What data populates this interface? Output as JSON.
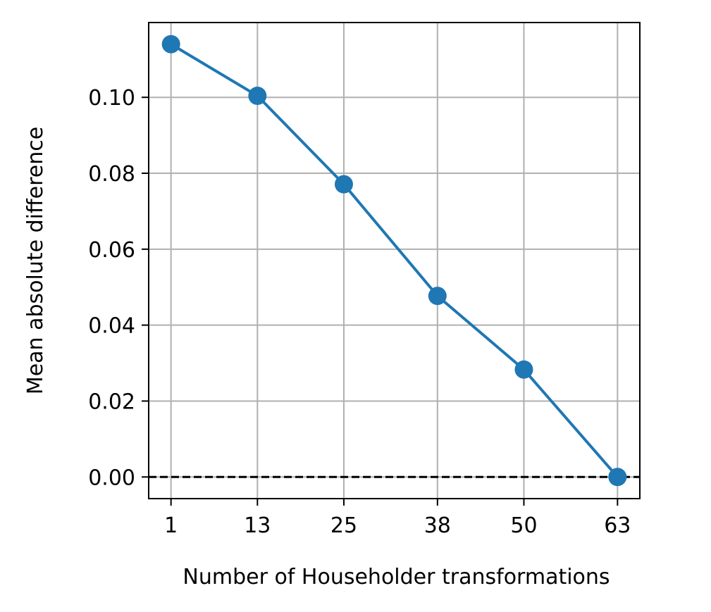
{
  "chart_data": {
    "type": "line",
    "title": "",
    "xlabel": "Number of Householder transformations",
    "ylabel": "Mean absolute difference",
    "x": [
      1,
      13,
      25,
      38,
      50,
      63
    ],
    "xticks": [
      "1",
      "13",
      "25",
      "38",
      "50",
      "63"
    ],
    "series": [
      {
        "values": [
          0.114,
          0.1004,
          0.0771,
          0.0477,
          0.0283,
          0.0
        ],
        "color": "#1f77b4",
        "marker": "circle"
      }
    ],
    "yticks": [
      "0.00",
      "0.02",
      "0.04",
      "0.06",
      "0.08",
      "0.10"
    ],
    "ytick_values": [
      0.0,
      0.02,
      0.04,
      0.06,
      0.08,
      0.1
    ],
    "xlim": [
      -2.1,
      66.1
    ],
    "ylim": [
      -0.0057,
      0.1197
    ],
    "grid": true,
    "reference_line": {
      "y": 0.0,
      "style": "dashed",
      "color": "#000000"
    },
    "colors": {
      "grid": "#b0b0b0",
      "axes": "#000000"
    }
  }
}
